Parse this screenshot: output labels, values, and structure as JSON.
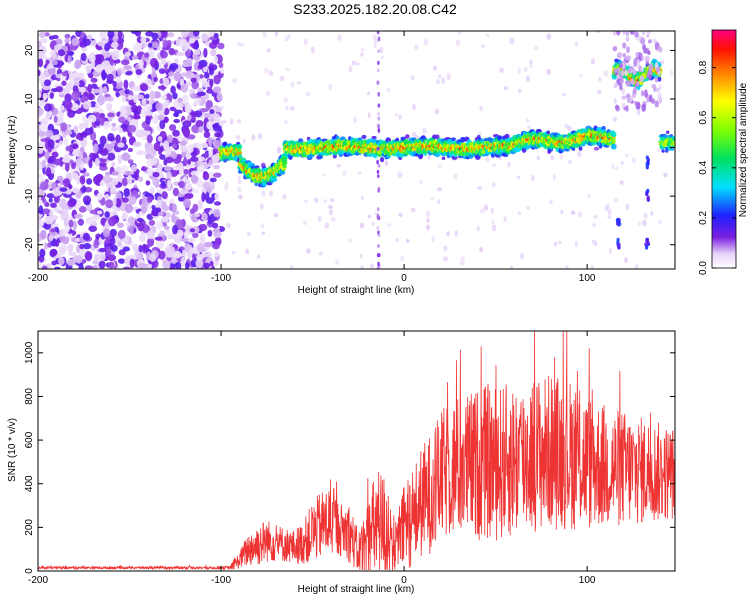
{
  "title": "S233.2025.182.20.08.C42",
  "chart_data": [
    {
      "type": "heatmap",
      "xlabel": "Height of straight line (km)",
      "ylabel": "Frequency (Hz)",
      "xlim": [
        -200,
        148
      ],
      "ylim": [
        -25,
        24
      ],
      "x_ticks": [
        -200,
        -100,
        0,
        100
      ],
      "y_ticks": [
        -20,
        -10,
        0,
        10,
        20
      ],
      "colorbar": {
        "label": "Normalized spectral amplitude",
        "range": [
          0.0,
          0.95
        ],
        "ticks": [
          0.0,
          0.2,
          0.4,
          0.6,
          0.8
        ],
        "tick_labels": [
          "0.0",
          "0.2",
          "0.4",
          "0.6",
          "0.8"
        ]
      },
      "features": [
        {
          "x_range": [
            -200,
            -100
          ],
          "frequency_range": [
            -25,
            24
          ],
          "amplitude": 0.1
        },
        {
          "x_range": [
            -100,
            115
          ],
          "center_frequency": 0,
          "amplitude_peak": 0.8
        },
        {
          "x_range": [
            -90,
            -65
          ],
          "center_frequency": -5,
          "amplitude_peak": 0.5
        },
        {
          "x_range": [
            115,
            140
          ],
          "center_frequency": 15,
          "amplitude_peak": 0.7
        },
        {
          "x_range": [
            140,
            148
          ],
          "center_frequency": 1,
          "amplitude_peak": 0.5
        }
      ]
    },
    {
      "type": "line",
      "xlabel": "Height of straight line (km)",
      "ylabel": "SNR (10 * v/v)",
      "xlim": [
        -200,
        148
      ],
      "ylim": [
        0,
        1100
      ],
      "x_ticks": [
        -200,
        -100,
        0,
        100
      ],
      "y_ticks": [
        0,
        200,
        400,
        600,
        800,
        1000
      ],
      "grid": false,
      "series": [
        {
          "color": "#ee3333",
          "x": [
            -200,
            -180,
            -160,
            -140,
            -120,
            -100,
            -95,
            -90,
            -85,
            -80,
            -75,
            -70,
            -65,
            -60,
            -55,
            -50,
            -45,
            -40,
            -35,
            -30,
            -25,
            -20,
            -15,
            -10,
            -5,
            0,
            5,
            10,
            15,
            20,
            25,
            30,
            35,
            40,
            45,
            50,
            55,
            60,
            65,
            70,
            75,
            80,
            85,
            90,
            95,
            100,
            105,
            110,
            115,
            120,
            125,
            130,
            135,
            140,
            145,
            148
          ],
          "y": [
            15,
            15,
            15,
            15,
            15,
            15,
            15,
            50,
            100,
            120,
            140,
            130,
            120,
            110,
            130,
            180,
            210,
            230,
            190,
            180,
            80,
            120,
            220,
            200,
            110,
            200,
            250,
            320,
            360,
            430,
            470,
            480,
            480,
            490,
            500,
            490,
            500,
            510,
            520,
            540,
            540,
            550,
            540,
            540,
            520,
            500,
            490,
            480,
            470,
            470,
            460,
            460,
            460,
            450,
            450,
            450
          ],
          "amplitude": [
            6,
            6,
            6,
            6,
            6,
            6,
            10,
            40,
            80,
            100,
            100,
            90,
            80,
            80,
            100,
            140,
            160,
            170,
            120,
            140,
            100,
            200,
            260,
            250,
            120,
            200,
            230,
            260,
            280,
            300,
            320,
            330,
            340,
            350,
            360,
            360,
            360,
            360,
            360,
            360,
            360,
            360,
            360,
            350,
            340,
            320,
            300,
            290,
            280,
            270,
            260,
            250,
            240,
            230,
            220,
            220
          ]
        }
      ]
    }
  ]
}
